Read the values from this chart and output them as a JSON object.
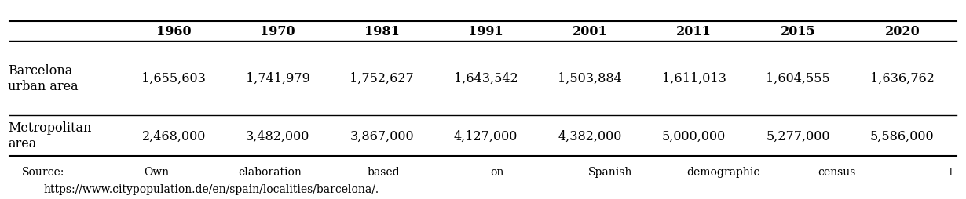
{
  "columns": [
    "1960",
    "1970",
    "1981",
    "1991",
    "2001",
    "2011",
    "2015",
    "2020"
  ],
  "row1_label_line1": "Barcelona",
  "row1_label_line2": "urban area",
  "row1_values": [
    "1,655,603",
    "1,741,979",
    "1,752,627",
    "1,643,542",
    "1,503,884",
    "1,611,013",
    "1,604,555",
    "1,636,762"
  ],
  "row2_label_line1": "Metropolitan",
  "row2_label_line2": "area",
  "row2_values": [
    "2,468,000",
    "3,482,000",
    "3,867,000",
    "4,127,000",
    "4,382,000",
    "5,000,000",
    "5,277,000",
    "5,586,000"
  ],
  "source_words": [
    "Source:",
    "Own",
    "elaboration",
    "based",
    "on",
    "Spanish",
    "demographic",
    "census",
    "+"
  ],
  "source_line2": "https://www.citypopulation.de/en/spain/localities/barcelona/.",
  "background_color": "#ffffff",
  "header_fontsize": 11.5,
  "cell_fontsize": 11.5,
  "source_fontsize": 10.0
}
